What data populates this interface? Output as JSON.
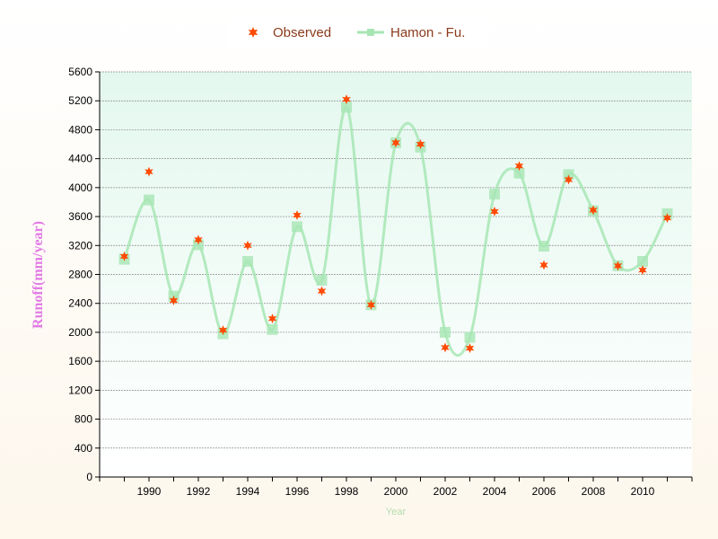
{
  "chart_data": {
    "type": "line",
    "xlabel": "Year",
    "ylabel": "Runoff(mm/year)",
    "xlim": [
      1988,
      2012
    ],
    "ylim": [
      0,
      5600
    ],
    "y_ticks": [
      0,
      400,
      800,
      1200,
      1600,
      2000,
      2400,
      2800,
      3200,
      3600,
      4000,
      4400,
      4800,
      5200,
      5600
    ],
    "x_ticks": [
      1990,
      1992,
      1994,
      1996,
      1998,
      2000,
      2002,
      2004,
      2006,
      2008,
      2010
    ],
    "grid": true,
    "legend_position": "top",
    "x": [
      1989,
      1990,
      1991,
      1992,
      1993,
      1994,
      1995,
      1996,
      1997,
      1998,
      1999,
      2000,
      2001,
      2002,
      2003,
      2004,
      2005,
      2006,
      2007,
      2008,
      2009,
      2010,
      2011
    ],
    "series": [
      {
        "name": "Observed",
        "style": "scatter-star",
        "color": "#ff4a00",
        "values": [
          3050,
          4220,
          2440,
          3280,
          2030,
          3200,
          2190,
          3620,
          2570,
          5220,
          2380,
          4620,
          4600,
          1790,
          1780,
          3670,
          4300,
          2930,
          4110,
          3690,
          2920,
          2860,
          3580
        ]
      },
      {
        "name": "Hamon - Fu.",
        "style": "smooth-line-square",
        "color": "#a7e6b4",
        "values": [
          3010,
          3830,
          2500,
          3210,
          1980,
          2980,
          2040,
          3460,
          2720,
          5110,
          2380,
          4620,
          4560,
          2000,
          1930,
          3910,
          4200,
          3190,
          4180,
          3680,
          2920,
          2980,
          3640
        ]
      }
    ]
  }
}
